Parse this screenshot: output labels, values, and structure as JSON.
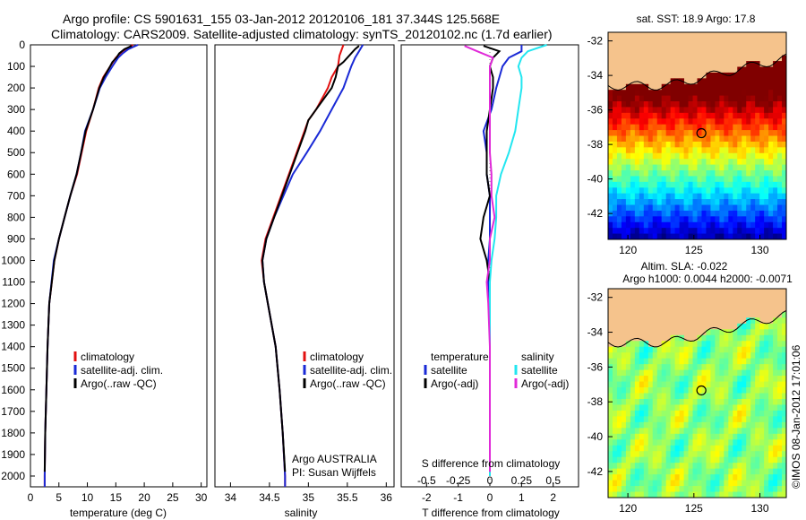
{
  "header": {
    "line1": "Argo profile: CS 5901631_155 03-Jan-2012 20120106_181 37.344S 125.568E",
    "line2": "Climatology: CARS2009. Satellite-adjusted climatology: synTS_20120102.nc (1.7d earlier)"
  },
  "colors": {
    "climatology": "#e21010",
    "satellite": "#1a2ad6",
    "argo": "#000000",
    "sal_satellite": "#22e6f0",
    "sal_argo": "#e02ad8",
    "land": "#f5c38c"
  },
  "chart_data": [
    {
      "type": "line",
      "name": "temperature-profile",
      "xlabel": "temperature (deg C)",
      "ylabel": "",
      "xlim": [
        0,
        31
      ],
      "ylim": [
        2050,
        0
      ],
      "xticks": [
        0,
        5,
        10,
        15,
        20,
        25,
        30
      ],
      "yticks": [
        0,
        100,
        200,
        300,
        400,
        500,
        600,
        700,
        800,
        900,
        1000,
        1100,
        1200,
        1300,
        1400,
        1500,
        1600,
        1700,
        1800,
        1900,
        2000
      ],
      "legend": [
        "climatology",
        "satellite-adj. clim.",
        "Argo(..raw -QC)"
      ],
      "series": [
        {
          "name": "climatology",
          "color_key": "climatology",
          "depth": [
            0,
            30,
            60,
            100,
            150,
            200,
            300,
            400,
            500,
            600,
            700,
            800,
            900,
            1000,
            1200,
            1400,
            1600,
            1800,
            2000,
            2050
          ],
          "values": [
            18.0,
            16.2,
            15.0,
            14.0,
            12.8,
            12.0,
            11.0,
            9.8,
            9.0,
            8.2,
            7.0,
            6.0,
            5.0,
            4.2,
            3.3,
            3.0,
            2.8,
            2.6,
            2.5,
            2.5
          ]
        },
        {
          "name": "satellite-adj. clim.",
          "color_key": "satellite",
          "depth": [
            0,
            20,
            40,
            60,
            100,
            150,
            200,
            300,
            400,
            500,
            600,
            700,
            800,
            900,
            1000,
            1200,
            1400,
            1600,
            1800,
            2000,
            2050
          ],
          "values": [
            18.9,
            17.2,
            16.2,
            15.4,
            14.4,
            13.2,
            12.2,
            11.0,
            9.6,
            8.9,
            8.1,
            7.0,
            6.0,
            5.0,
            4.1,
            3.3,
            3.0,
            2.8,
            2.6,
            2.5,
            2.5
          ]
        },
        {
          "name": "Argo(..raw -QC)",
          "color_key": "argo",
          "depth": [
            5,
            20,
            40,
            60,
            80,
            100,
            150,
            200,
            300,
            400,
            500,
            600,
            700,
            800,
            900,
            1000,
            1200,
            1400,
            1600,
            1800,
            1980
          ],
          "values": [
            17.8,
            16.5,
            15.6,
            15.1,
            14.4,
            14.0,
            12.9,
            12.1,
            11.0,
            9.7,
            8.9,
            8.1,
            7.0,
            6.0,
            5.0,
            4.2,
            3.3,
            3.0,
            2.8,
            2.6,
            2.5
          ]
        }
      ]
    },
    {
      "type": "line",
      "name": "salinity-profile",
      "xlabel": "salinity",
      "ylabel": "",
      "xlim": [
        33.8,
        36.1
      ],
      "ylim": [
        2050,
        0
      ],
      "xticks": [
        34,
        34.5,
        35,
        35.5,
        36
      ],
      "legend": [
        "climatology",
        "satellite-adj. clim.",
        "Argo(..raw -QC)"
      ],
      "annotation": [
        "Argo AUSTRALIA",
        "PI: Susan Wijffels"
      ],
      "series": [
        {
          "name": "climatology",
          "color_key": "climatology",
          "depth": [
            0,
            50,
            100,
            150,
            200,
            300,
            350,
            400,
            500,
            600,
            700,
            800,
            900,
            1000,
            1100,
            1200,
            1400,
            1600,
            1800,
            2000,
            2050
          ],
          "values": [
            35.45,
            35.4,
            35.38,
            35.3,
            35.25,
            35.1,
            35.0,
            34.95,
            34.85,
            34.75,
            34.65,
            34.55,
            34.45,
            34.4,
            34.43,
            34.48,
            34.58,
            34.63,
            34.67,
            34.7,
            34.7
          ]
        },
        {
          "name": "satellite-adj. clim.",
          "color_key": "satellite",
          "depth": [
            0,
            30,
            60,
            100,
            150,
            200,
            300,
            400,
            500,
            600,
            700,
            800,
            900,
            1000,
            1100,
            1200,
            1400,
            1600,
            1800,
            2000,
            2050
          ],
          "values": [
            35.7,
            35.65,
            35.6,
            35.55,
            35.5,
            35.45,
            35.3,
            35.15,
            34.98,
            34.8,
            34.68,
            34.56,
            34.46,
            34.41,
            34.43,
            34.48,
            34.58,
            34.63,
            34.67,
            34.7,
            34.7
          ]
        },
        {
          "name": "Argo(..raw -QC)",
          "color_key": "argo",
          "depth": [
            5,
            20,
            40,
            60,
            80,
            100,
            150,
            200,
            250,
            300,
            350,
            400,
            500,
            600,
            700,
            800,
            900,
            1000,
            1100,
            1200,
            1400,
            1600,
            1800,
            1980
          ],
          "values": [
            35.65,
            35.6,
            35.55,
            35.5,
            35.45,
            35.38,
            35.35,
            35.3,
            35.2,
            35.1,
            35.0,
            34.96,
            34.86,
            34.76,
            34.66,
            34.56,
            34.46,
            34.41,
            34.43,
            34.48,
            34.58,
            34.63,
            34.67,
            34.7
          ]
        }
      ]
    },
    {
      "type": "line",
      "name": "difference-profile",
      "xlabel": "T difference from climatology",
      "ylabel": "",
      "xlim": [
        -2.8,
        2.8
      ],
      "ylim": [
        2050,
        0
      ],
      "xticks": [
        -2,
        -1,
        0,
        1,
        2
      ],
      "top_axis": {
        "label": "S difference from climatology",
        "ticks": [
          -0.5,
          -0.25,
          0,
          0.25,
          0.5
        ],
        "scale": 4
      },
      "legend": {
        "temperature": [
          "satellite",
          "Argo(-adj)"
        ],
        "salinity": [
          "satellite",
          "Argo(-adj)"
        ]
      },
      "legend_titles": {
        "temperature": "temperature",
        "salinity": "salinity"
      },
      "series": [
        {
          "name": "satellite",
          "group": "temperature",
          "color_key": "satellite",
          "depth": [
            0,
            30,
            60,
            100,
            150,
            200,
            300,
            400,
            500,
            600,
            700,
            800,
            900,
            1000,
            1100,
            1200,
            1300,
            1400,
            1600,
            1800,
            2000
          ],
          "values": [
            1.0,
            1.0,
            0.6,
            0.4,
            0.3,
            0.2,
            0.05,
            -0.2,
            -0.1,
            -0.1,
            0.0,
            0.0,
            0.0,
            -0.05,
            -0.05,
            0.0,
            0.0,
            0.0,
            0.0,
            0.0,
            0.0
          ]
        },
        {
          "name": "Argo(-adj)",
          "group": "temperature",
          "color_key": "argo",
          "depth": [
            5,
            30,
            60,
            100,
            150,
            200,
            300,
            400,
            500,
            600,
            700,
            800,
            900,
            1000,
            1100,
            1200,
            1400,
            1600,
            1800,
            1980
          ],
          "values": [
            -0.2,
            0.3,
            0.1,
            0.0,
            0.1,
            0.1,
            0.0,
            -0.1,
            -0.1,
            -0.1,
            0.0,
            -0.2,
            -0.3,
            -0.1,
            0.0,
            0.0,
            0.0,
            0.0,
            0.0,
            0.0
          ]
        },
        {
          "name": "satellite",
          "group": "salinity",
          "color_key": "sal_satellite",
          "depth": [
            0,
            30,
            60,
            100,
            150,
            200,
            300,
            400,
            500,
            600,
            700,
            800,
            900,
            1000,
            1100,
            1200,
            1300,
            1400,
            1600,
            1800,
            2000
          ],
          "values": [
            1.8,
            1.2,
            1.0,
            0.9,
            1.0,
            1.0,
            0.9,
            0.8,
            0.6,
            0.35,
            0.2,
            0.2,
            0.15,
            0.05,
            0.0,
            0.0,
            0.0,
            0.0,
            0.0,
            0.0,
            0.0
          ]
        },
        {
          "name": "Argo(-adj)",
          "group": "salinity",
          "color_key": "sal_argo",
          "depth": [
            5,
            30,
            60,
            100,
            150,
            200,
            300,
            400,
            500,
            600,
            700,
            800,
            900,
            1000,
            1100,
            1200,
            1400,
            1600,
            1800,
            1980
          ],
          "values": [
            -0.8,
            -0.4,
            0.1,
            0.0,
            0.0,
            0.0,
            0.0,
            0.0,
            0.0,
            0.05,
            0.05,
            0.15,
            0.0,
            0.0,
            -0.1,
            -0.05,
            0.0,
            0.0,
            0.0,
            0.0
          ]
        }
      ]
    },
    {
      "type": "heatmap",
      "name": "sst-map",
      "title": "sat. SST: 18.9  Argo: 17.8",
      "xlim": [
        118.5,
        132
      ],
      "ylim": [
        -43.5,
        -31.5
      ],
      "xticks": [
        120,
        125,
        130
      ],
      "yticks": [
        -32,
        -34,
        -36,
        -38,
        -40,
        -42
      ],
      "profile_location": {
        "lon": 125.568,
        "lat": -37.344
      }
    },
    {
      "type": "heatmap",
      "name": "sla-map",
      "title": "Altim. SLA: -0.022",
      "subtitle": "Argo h1000: 0.0044  h2000: -0.0071",
      "xlim": [
        118.5,
        132
      ],
      "ylim": [
        -43.5,
        -31.5
      ],
      "xticks": [
        120,
        125,
        130
      ],
      "yticks": [
        -32,
        -34,
        -36,
        -38,
        -40,
        -42
      ],
      "profile_location": {
        "lon": 125.568,
        "lat": -37.344
      }
    }
  ],
  "credit": "©IMOS 08-Jan-2012 17:01:06"
}
